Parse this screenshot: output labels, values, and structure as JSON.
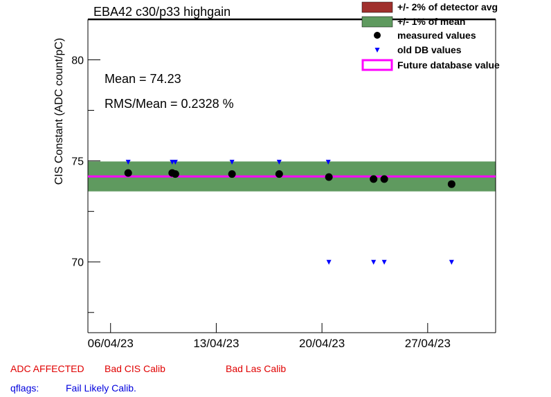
{
  "title": "EBA42 c30/p33 highgain",
  "stats": {
    "mean": "Mean = 74.23",
    "rms": "RMS/Mean = 0.2328 %"
  },
  "legend": [
    {
      "label": "+/- 2% of detector avg",
      "color": "#a0302d"
    },
    {
      "label": "+/- 1% of mean",
      "color": "#5f9a5f"
    },
    {
      "label": "measured values",
      "color": "#000000"
    },
    {
      "label": "old DB values",
      "color": "#0000ff"
    },
    {
      "label": "Future database value",
      "color": "#ff00ff"
    }
  ],
  "flags": {
    "adc_affected": "ADC AFFECTED",
    "bad_cis": "Bad CIS Calib",
    "bad_las": "Bad Las Calib",
    "qflags_label": "qflags:",
    "qflags_value": "Fail Likely Calib."
  },
  "chart_data": {
    "type": "scatter",
    "ylabel": "CIS Constant (ADC count/pC)",
    "xlabel": "",
    "ylim": [
      66.5,
      82
    ],
    "xlim": [
      "2023-04-05T00:00",
      "2023-05-02T00:00"
    ],
    "yticks": [
      70,
      75,
      80
    ],
    "xtick_labels": [
      "06/04/23",
      "13/04/23",
      "20/04/23",
      "27/04/23"
    ],
    "xtick_dates": [
      "2023-04-06T12:00",
      "2023-04-13T12:00",
      "2023-04-20T12:00",
      "2023-04-27T12:00"
    ],
    "mean": 74.23,
    "band_1pct": [
      73.49,
      74.97
    ],
    "future_value": 74.23,
    "series": [
      {
        "name": "measured values",
        "x": [
          "2023-04-07T16:00",
          "2023-04-10T14:00",
          "2023-04-10T19:00",
          "2023-04-14T13:00",
          "2023-04-17T16:00",
          "2023-04-20T23:00",
          "2023-04-23T22:00",
          "2023-04-24T15:00",
          "2023-04-29T02:00"
        ],
        "y": [
          74.4,
          74.4,
          74.35,
          74.35,
          74.35,
          74.2,
          74.1,
          74.1,
          73.85
        ]
      },
      {
        "name": "old DB values",
        "x": [
          "2023-04-07T16:00",
          "2023-04-10T14:00",
          "2023-04-10T19:00",
          "2023-04-14T13:00",
          "2023-04-17T16:00",
          "2023-04-20T22:00",
          "2023-04-20T23:00",
          "2023-04-23T22:00",
          "2023-04-24T15:00",
          "2023-04-29T02:00"
        ],
        "y": [
          74.95,
          74.95,
          74.95,
          74.95,
          74.95,
          74.95,
          70.0,
          70.0,
          70.0,
          70.0
        ]
      }
    ]
  }
}
